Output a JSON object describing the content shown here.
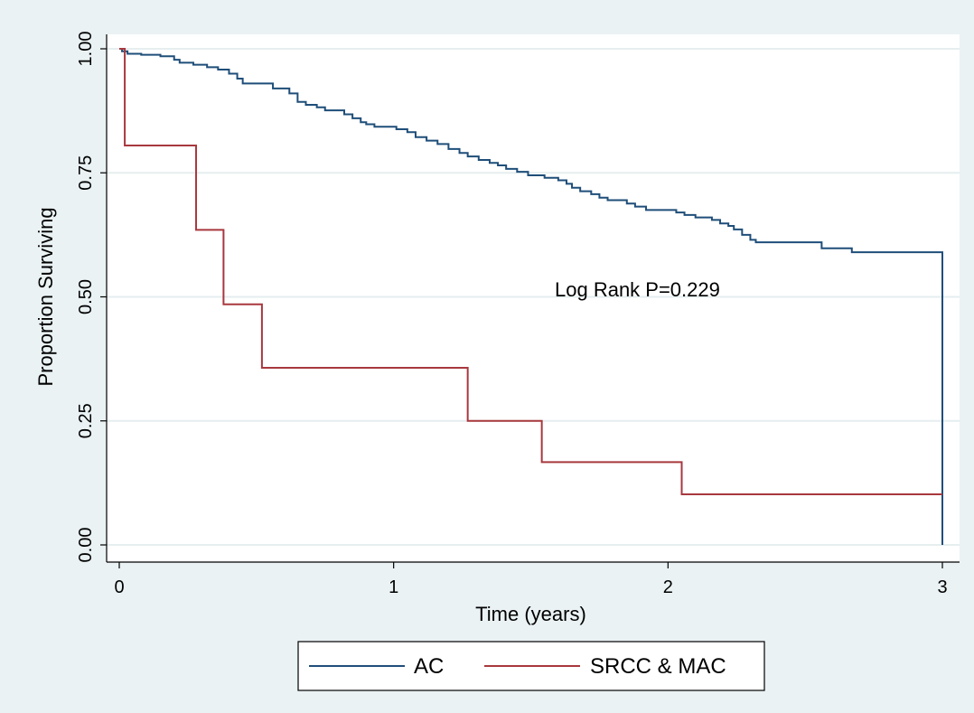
{
  "chart_data": {
    "type": "line",
    "title": "",
    "xlabel": "Time (years)",
    "ylabel": "Proportion Surviving",
    "xlim": [
      0,
      3
    ],
    "ylim": [
      0,
      1
    ],
    "xticks": [
      0,
      1,
      2,
      3
    ],
    "xtick_labels": [
      "0",
      "1",
      "2",
      "3"
    ],
    "yticks": [
      0,
      0.25,
      0.5,
      0.75,
      1
    ],
    "ytick_labels": [
      "0.00",
      "0.25",
      "0.50",
      "0.75",
      "1.00"
    ],
    "grid": "horizontal",
    "legend_position": "bottom",
    "annotation": "Log Rank P=0.229",
    "series": [
      {
        "name": "AC",
        "color": "#1f4e79",
        "step": true,
        "points": [
          [
            0,
            1.0
          ],
          [
            0.01,
            0.995
          ],
          [
            0.03,
            0.99
          ],
          [
            0.08,
            0.988
          ],
          [
            0.15,
            0.985
          ],
          [
            0.2,
            0.978
          ],
          [
            0.22,
            0.972
          ],
          [
            0.27,
            0.968
          ],
          [
            0.32,
            0.963
          ],
          [
            0.36,
            0.958
          ],
          [
            0.4,
            0.95
          ],
          [
            0.43,
            0.94
          ],
          [
            0.45,
            0.93
          ],
          [
            0.56,
            0.92
          ],
          [
            0.62,
            0.91
          ],
          [
            0.65,
            0.893
          ],
          [
            0.68,
            0.887
          ],
          [
            0.72,
            0.882
          ],
          [
            0.75,
            0.876
          ],
          [
            0.82,
            0.868
          ],
          [
            0.85,
            0.86
          ],
          [
            0.88,
            0.852
          ],
          [
            0.9,
            0.848
          ],
          [
            0.93,
            0.843
          ],
          [
            1.01,
            0.838
          ],
          [
            1.05,
            0.832
          ],
          [
            1.08,
            0.822
          ],
          [
            1.12,
            0.815
          ],
          [
            1.16,
            0.808
          ],
          [
            1.2,
            0.798
          ],
          [
            1.24,
            0.79
          ],
          [
            1.27,
            0.783
          ],
          [
            1.31,
            0.776
          ],
          [
            1.35,
            0.77
          ],
          [
            1.38,
            0.765
          ],
          [
            1.41,
            0.758
          ],
          [
            1.45,
            0.752
          ],
          [
            1.49,
            0.745
          ],
          [
            1.55,
            0.74
          ],
          [
            1.6,
            0.735
          ],
          [
            1.63,
            0.728
          ],
          [
            1.65,
            0.72
          ],
          [
            1.68,
            0.713
          ],
          [
            1.72,
            0.707
          ],
          [
            1.75,
            0.7
          ],
          [
            1.78,
            0.695
          ],
          [
            1.85,
            0.688
          ],
          [
            1.88,
            0.682
          ],
          [
            1.92,
            0.675
          ],
          [
            2.03,
            0.67
          ],
          [
            2.06,
            0.665
          ],
          [
            2.1,
            0.66
          ],
          [
            2.16,
            0.655
          ],
          [
            2.19,
            0.648
          ],
          [
            2.22,
            0.643
          ],
          [
            2.24,
            0.636
          ],
          [
            2.27,
            0.625
          ],
          [
            2.3,
            0.615
          ],
          [
            2.32,
            0.61
          ],
          [
            2.56,
            0.598
          ],
          [
            2.67,
            0.59
          ],
          [
            3.0,
            0.585
          ],
          [
            3.0,
            0.575
          ],
          [
            3.0,
            0.0
          ]
        ]
      },
      {
        "name": "SRCC & MAC",
        "color": "#a8383e",
        "step": true,
        "points": [
          [
            0,
            1.0
          ],
          [
            0.02,
            0.805
          ],
          [
            0.28,
            0.635
          ],
          [
            0.38,
            0.485
          ],
          [
            0.52,
            0.357
          ],
          [
            1.27,
            0.25
          ],
          [
            1.54,
            0.167
          ],
          [
            2.05,
            0.102
          ],
          [
            3.0,
            0.102
          ]
        ]
      }
    ]
  }
}
